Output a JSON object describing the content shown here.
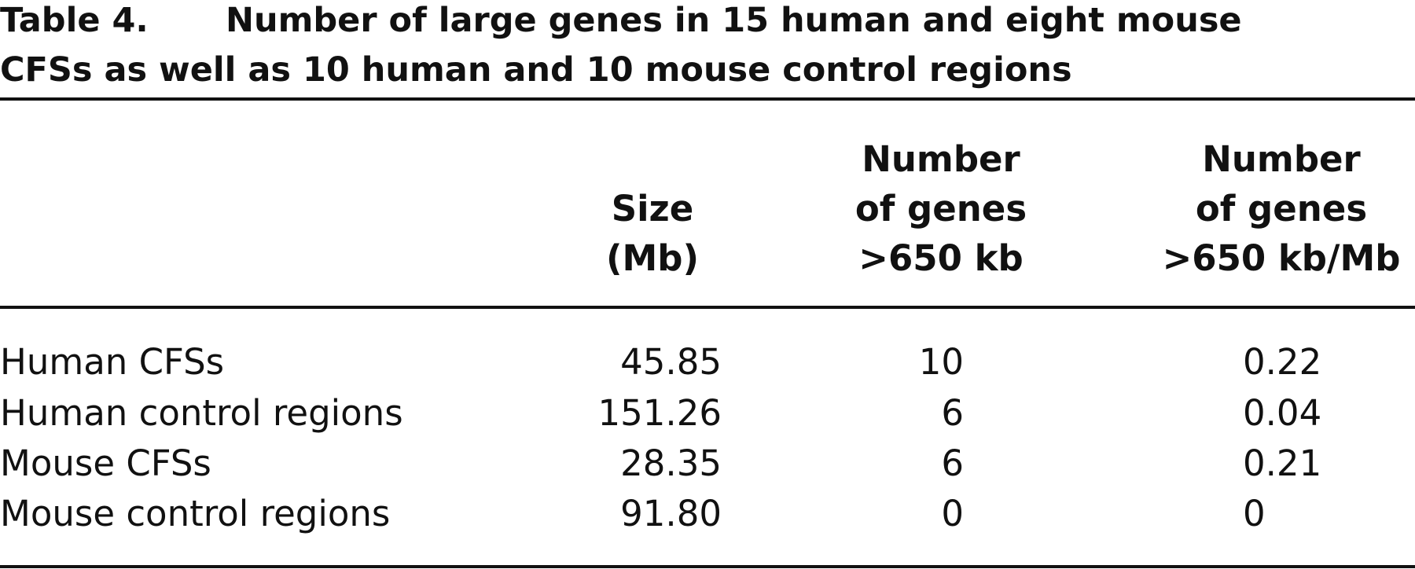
{
  "title": {
    "label": "Table 4.",
    "lines": [
      "Number of large genes in 15 human and eight mouse",
      "CFSs as well as 10 human and 10 mouse control regions"
    ]
  },
  "table": {
    "columns": [
      [
        "Size",
        "(Mb)"
      ],
      [
        "Number",
        "of genes",
        ">650 kb"
      ],
      [
        "Number",
        "of genes",
        ">650 kb/Mb"
      ]
    ],
    "rows": [
      [
        "Human CFSs",
        "45.85",
        "10",
        "0.22"
      ],
      [
        "Human control regions",
        "151.26",
        "6",
        "0.04"
      ],
      [
        "Mouse CFSs",
        "28.35",
        "6",
        "0.21"
      ],
      [
        "Mouse control regions",
        "91.80",
        "0",
        "0"
      ]
    ]
  }
}
